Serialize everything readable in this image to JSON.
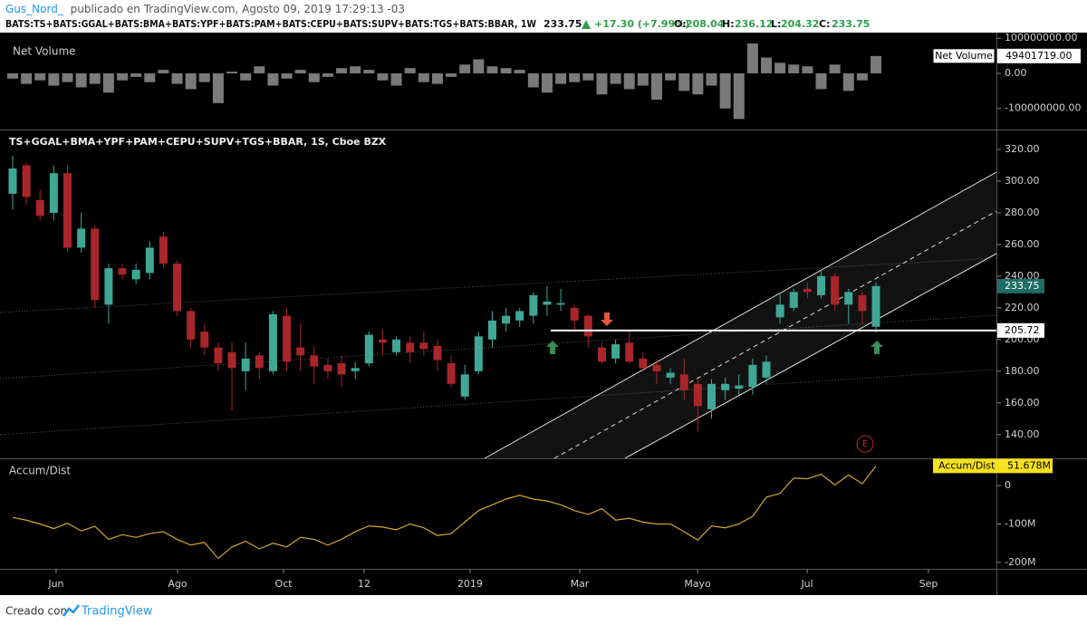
{
  "header": {
    "author": "Gus_Nord_",
    "published": "publicado en TradingView.com, Agosto 09, 2019 17:29:13 -03",
    "symbol": "BATS:TS+BATS:GGAL+BATS:BMA+BATS:YPF+BATS:PAM+BATS:CEPU+BATS:SUPV+BATS:TGS+BATS:BBAR, 1W",
    "change": "+17.30 (+7.99%)",
    "o_label": "O:",
    "h_label": "H:",
    "l_label": "L:",
    "c_label": "C:"
  },
  "chart_data": [
    {
      "type": "bar",
      "title": "Net Volume",
      "color": "#7a7a7a",
      "values": [
        -15000000,
        -30000000,
        -20000000,
        -35000000,
        -25000000,
        -40000000,
        -30000000,
        -55000000,
        -20000000,
        -10000000,
        -25000000,
        10000000,
        -30000000,
        -45000000,
        -25000000,
        -85000000,
        5000000,
        -20000000,
        20000000,
        -35000000,
        -15000000,
        10000000,
        -25000000,
        -10000000,
        15000000,
        20000000,
        10000000,
        -20000000,
        -35000000,
        15000000,
        -25000000,
        -30000000,
        -10000000,
        25000000,
        40000000,
        20000000,
        15000000,
        10000000,
        -40000000,
        -55000000,
        -30000000,
        -25000000,
        -20000000,
        -60000000,
        -30000000,
        -45000000,
        -35000000,
        -75000000,
        -20000000,
        -50000000,
        -60000000,
        -35000000,
        -100000000,
        -130000000,
        85000000,
        45000000,
        30000000,
        25000000,
        20000000,
        -45000000,
        25000000,
        -50000000,
        -20000000,
        49401719
      ],
      "value_labels": [
        null,
        null,
        null,
        null,
        null,
        null,
        null,
        null,
        null,
        null,
        null,
        null,
        null,
        null,
        null,
        null,
        null,
        null,
        null,
        null,
        null,
        null,
        null,
        null,
        null,
        null,
        null,
        null,
        null,
        null,
        null,
        null,
        null,
        null,
        null,
        null,
        null,
        null,
        null,
        null,
        null,
        null,
        null,
        null,
        null,
        null,
        null,
        null,
        null,
        null,
        null,
        null,
        null,
        null,
        null,
        null,
        null,
        null,
        null,
        null,
        null,
        null,
        null,
        "49401719.00"
      ],
      "ylim": [
        -160000000,
        116000000
      ],
      "yticks": [
        {
          "value": 100000000,
          "label": "100000000.00"
        },
        {
          "value": 0,
          "label": "0.00"
        },
        {
          "value": -100000000,
          "label": "-100000000.00"
        }
      ]
    },
    {
      "type": "candlestick",
      "title": "TS+GGAL+BMA+YPF+PAM+CEPU+SUPV+TGS+BBAR, 1S, Cboe BZX",
      "up_color": "#3fa796",
      "down_color": "#a8262b",
      "x": [
        0,
        1,
        2,
        3,
        4,
        5,
        6,
        7,
        8,
        9,
        10,
        11,
        12,
        13,
        14,
        15,
        16,
        17,
        18,
        19,
        20,
        21,
        22,
        23,
        24,
        25,
        26,
        27,
        28,
        29,
        30,
        31,
        32,
        33,
        34,
        35,
        36,
        37,
        38,
        39,
        40,
        41,
        42,
        43,
        44,
        45,
        46,
        47,
        48,
        49,
        50,
        51,
        52,
        53,
        54,
        55,
        56,
        57,
        58,
        59,
        60,
        61,
        62,
        63
      ],
      "open": [
        292,
        310,
        288,
        280,
        305,
        258,
        270,
        222,
        245,
        238,
        242,
        265,
        248,
        218,
        205,
        195,
        192,
        180,
        190,
        180,
        215,
        195,
        190,
        184,
        185,
        180,
        185,
        200,
        192,
        198,
        198,
        196,
        185,
        164,
        180,
        200,
        210,
        212,
        215,
        222,
        222,
        220,
        215,
        195,
        188,
        198,
        188,
        184,
        176,
        178,
        172,
        156,
        168,
        169,
        170,
        176,
        214,
        220,
        232,
        228,
        240,
        222,
        228,
        208.04
      ],
      "high": [
        316,
        312,
        295,
        310,
        310,
        280,
        272,
        248,
        248,
        248,
        262,
        268,
        250,
        220,
        210,
        198,
        198,
        198,
        192,
        218,
        220,
        210,
        196,
        188,
        190,
        186,
        205,
        206,
        202,
        202,
        205,
        200,
        190,
        184,
        205,
        218,
        220,
        220,
        230,
        234,
        232,
        222,
        216,
        198,
        200,
        206,
        192,
        188,
        182,
        188,
        175,
        175,
        176,
        178,
        188,
        190,
        230,
        232,
        236,
        244,
        242,
        232,
        230,
        236.12
      ],
      "low": [
        282,
        285,
        275,
        275,
        255,
        255,
        220,
        210,
        238,
        235,
        238,
        245,
        215,
        195,
        190,
        180,
        155,
        168,
        175,
        178,
        180,
        180,
        172,
        175,
        170,
        175,
        183,
        190,
        190,
        185,
        190,
        180,
        170,
        162,
        178,
        195,
        205,
        208,
        210,
        215,
        218,
        205,
        195,
        185,
        185,
        185,
        180,
        172,
        172,
        162,
        142,
        150,
        162,
        165,
        165,
        172,
        210,
        218,
        226,
        226,
        218,
        210,
        210,
        204.32
      ],
      "close": [
        308,
        290,
        278,
        305,
        258,
        270,
        225,
        245,
        241,
        244,
        258,
        248,
        218,
        200,
        195,
        185,
        182,
        188,
        182,
        216,
        186,
        190,
        183,
        180,
        178,
        182,
        203,
        198,
        200,
        192,
        194,
        187,
        172,
        178,
        202,
        212,
        215,
        218,
        228,
        224,
        223,
        212,
        202,
        186,
        197,
        186,
        182,
        180,
        179,
        168,
        158,
        172,
        172,
        171,
        184,
        186,
        222,
        230,
        230,
        240,
        222,
        230,
        218,
        233.75
      ],
      "hline": 205.72,
      "marker_label": "E",
      "xlim": [
        -0.925,
        71.79
      ],
      "xticks": [
        {
          "value": 3.17,
          "label": "Jun"
        },
        {
          "value": 12.03,
          "label": "Ago"
        },
        {
          "value": 19.77,
          "label": "Oct"
        },
        {
          "value": 25.65,
          "label": "12"
        },
        {
          "value": 33.38,
          "label": "2019"
        },
        {
          "value": 41.38,
          "label": "Mar"
        },
        {
          "value": 49.98,
          "label": "Mayo"
        },
        {
          "value": 57.98,
          "label": "Jul"
        },
        {
          "value": 66.83,
          "label": "Sep"
        }
      ],
      "ylim": [
        125,
        332
      ],
      "yticks": [
        {
          "value": 140,
          "label": "140.00"
        },
        {
          "value": 160,
          "label": "160.00"
        },
        {
          "value": 180,
          "label": "180.00"
        },
        {
          "value": 200,
          "label": "200.00"
        },
        {
          "value": 220,
          "label": "220.00"
        },
        {
          "value": 240,
          "label": "240.00"
        },
        {
          "value": 260,
          "label": "260.00"
        },
        {
          "value": 280,
          "label": "280.00"
        },
        {
          "value": 300,
          "label": "300.00"
        },
        {
          "value": 320,
          "label": "320.00"
        }
      ]
    },
    {
      "type": "line",
      "title": "Accum/Dist",
      "color": "#d4a72c",
      "values": [
        -83000000,
        -90000000,
        -100000000,
        -112000000,
        -98000000,
        -118000000,
        -106000000,
        -140000000,
        -128000000,
        -135000000,
        -125000000,
        -120000000,
        -140000000,
        -155000000,
        -148000000,
        -190000000,
        -160000000,
        -145000000,
        -165000000,
        -150000000,
        -160000000,
        -135000000,
        -140000000,
        -155000000,
        -140000000,
        -120000000,
        -105000000,
        -108000000,
        -115000000,
        -100000000,
        -110000000,
        -130000000,
        -125000000,
        -95000000,
        -65000000,
        -50000000,
        -35000000,
        -25000000,
        -35000000,
        -40000000,
        -50000000,
        -65000000,
        -75000000,
        -60000000,
        -90000000,
        -85000000,
        -95000000,
        -100000000,
        -100000000,
        -120000000,
        -142000000,
        -105000000,
        -110000000,
        -100000000,
        -80000000,
        -30000000,
        -20000000,
        20000000,
        18000000,
        30000000,
        2000000,
        28000000,
        5000000,
        51678000
      ],
      "value_labels": [
        null,
        null,
        null,
        null,
        null,
        null,
        null,
        null,
        null,
        null,
        null,
        null,
        null,
        null,
        null,
        null,
        null,
        null,
        null,
        null,
        null,
        null,
        null,
        null,
        null,
        null,
        null,
        null,
        null,
        null,
        null,
        null,
        null,
        null,
        null,
        null,
        null,
        null,
        null,
        null,
        null,
        null,
        null,
        null,
        null,
        null,
        null,
        null,
        null,
        null,
        null,
        null,
        null,
        null,
        null,
        null,
        null,
        null,
        null,
        null,
        null,
        null,
        null,
        "51.678M"
      ],
      "ylim": [
        -217000000,
        69000000
      ],
      "yticks": [
        0,
        {
          "value": -100000000,
          "label": "-100M"
        },
        {
          "value": -200000000,
          "label": "-200M"
        }
      ]
    }
  ],
  "footer": {
    "created": "Creado con",
    "brand": "TradingView"
  }
}
